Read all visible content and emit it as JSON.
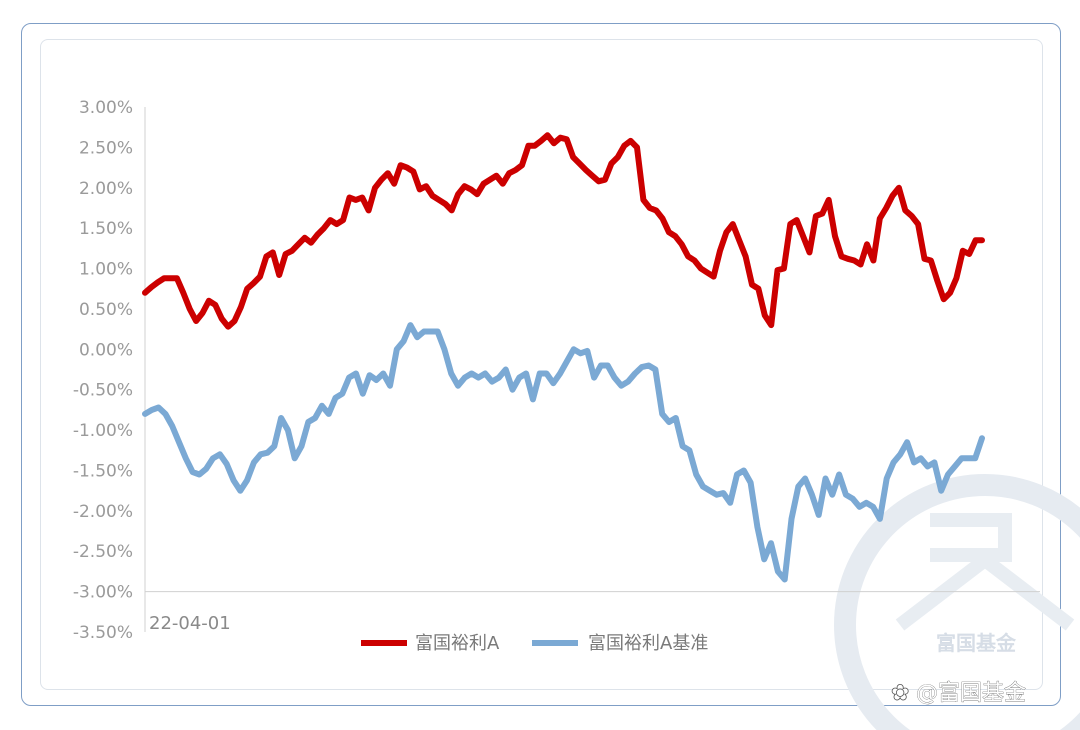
{
  "chart_data": {
    "type": "line",
    "title": "",
    "xlabel": "",
    "ylabel": "",
    "x_start_label": "22-04-01",
    "y_ticks": [
      "3.00%",
      "2.50%",
      "2.00%",
      "1.50%",
      "1.00%",
      "0.50%",
      "0.00%",
      "-0.50%",
      "-1.00%",
      "-1.50%",
      "-2.00%",
      "-2.50%",
      "-3.00%",
      "-3.50%"
    ],
    "ylim": [
      -3.5,
      3.0
    ],
    "y_unit": "%",
    "grid": false,
    "legend_position": "bottom",
    "series": [
      {
        "name": "富国裕利A",
        "color": "#cc0000",
        "values": [
          0.7,
          0.77,
          0.83,
          0.88,
          0.88,
          0.88,
          0.7,
          0.5,
          0.35,
          0.45,
          0.6,
          0.55,
          0.38,
          0.28,
          0.35,
          0.52,
          0.75,
          0.82,
          0.9,
          1.15,
          1.2,
          0.92,
          1.18,
          1.22,
          1.3,
          1.38,
          1.32,
          1.42,
          1.5,
          1.6,
          1.55,
          1.6,
          1.88,
          1.85,
          1.88,
          1.72,
          2.0,
          2.1,
          2.18,
          2.05,
          2.28,
          2.25,
          2.2,
          1.98,
          2.02,
          1.9,
          1.85,
          1.8,
          1.72,
          1.92,
          2.02,
          1.98,
          1.92,
          2.05,
          2.1,
          2.15,
          2.05,
          2.18,
          2.22,
          2.28,
          2.52,
          2.52,
          2.58,
          2.65,
          2.55,
          2.62,
          2.6,
          2.38,
          2.3,
          2.22,
          2.15,
          2.08,
          2.1,
          2.3,
          2.38,
          2.52,
          2.58,
          2.5,
          1.85,
          1.75,
          1.72,
          1.62,
          1.45,
          1.4,
          1.3,
          1.15,
          1.1,
          1.0,
          0.95,
          0.9,
          1.22,
          1.45,
          1.55,
          1.35,
          1.15,
          0.8,
          0.75,
          0.42,
          0.3,
          0.98,
          1.0,
          1.55,
          1.6,
          1.4,
          1.2,
          1.65,
          1.68,
          1.85,
          1.4,
          1.15,
          1.12,
          1.1,
          1.05,
          1.3,
          1.1,
          1.62,
          1.75,
          1.9,
          2.0,
          1.72,
          1.65,
          1.55,
          1.12,
          1.1,
          0.85,
          0.62,
          0.7,
          0.88,
          1.22,
          1.18,
          1.35,
          1.35
        ]
      },
      {
        "name": "富国裕利A基准",
        "color": "#7ba9d4",
        "values": [
          -0.8,
          -0.75,
          -0.72,
          -0.8,
          -0.95,
          -1.15,
          -1.35,
          -1.52,
          -1.55,
          -1.48,
          -1.35,
          -1.3,
          -1.42,
          -1.62,
          -1.75,
          -1.62,
          -1.4,
          -1.3,
          -1.28,
          -1.2,
          -0.85,
          -1.0,
          -1.35,
          -1.2,
          -0.9,
          -0.85,
          -0.7,
          -0.8,
          -0.6,
          -0.55,
          -0.35,
          -0.3,
          -0.55,
          -0.32,
          -0.38,
          -0.3,
          -0.45,
          0.0,
          0.1,
          0.3,
          0.15,
          0.22,
          0.22,
          0.22,
          0.0,
          -0.3,
          -0.45,
          -0.35,
          -0.3,
          -0.35,
          -0.3,
          -0.4,
          -0.35,
          -0.25,
          -0.5,
          -0.35,
          -0.3,
          -0.62,
          -0.3,
          -0.3,
          -0.42,
          -0.3,
          -0.15,
          0.0,
          -0.05,
          -0.02,
          -0.35,
          -0.2,
          -0.2,
          -0.35,
          -0.45,
          -0.4,
          -0.3,
          -0.22,
          -0.2,
          -0.25,
          -0.8,
          -0.9,
          -0.85,
          -1.2,
          -1.25,
          -1.55,
          -1.7,
          -1.75,
          -1.8,
          -1.78,
          -1.9,
          -1.55,
          -1.5,
          -1.65,
          -2.2,
          -2.6,
          -2.4,
          -2.75,
          -2.85,
          -2.1,
          -1.7,
          -1.6,
          -1.8,
          -2.05,
          -1.6,
          -1.8,
          -1.55,
          -1.8,
          -1.85,
          -1.95,
          -1.9,
          -1.95,
          -2.1,
          -1.6,
          -1.4,
          -1.3,
          -1.15,
          -1.4,
          -1.35,
          -1.45,
          -1.4,
          -1.75,
          -1.55,
          -1.45,
          -1.35,
          -1.35,
          -1.35,
          -1.1
        ]
      }
    ]
  },
  "watermark": {
    "logo_text": "富国基金",
    "credit_text": "@富国基金"
  }
}
